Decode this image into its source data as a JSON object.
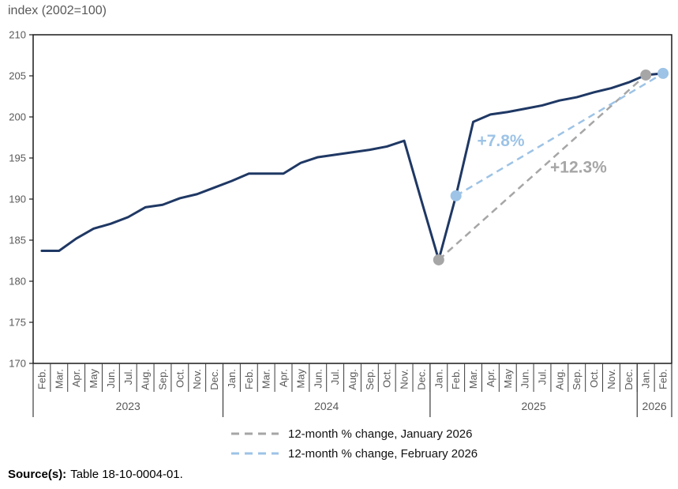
{
  "page": {
    "title": "index (2002=100)",
    "source_label": "Source(s):",
    "source_text": "Table 18-10-0004-01."
  },
  "legend": {
    "items": [
      {
        "label": "12-month % change, January 2026",
        "color": "#a6a6a6"
      },
      {
        "label": "12-month % change, February 2026",
        "color": "#9dc3e6"
      }
    ]
  },
  "chart_data": {
    "type": "line",
    "title": "index (2002=100)",
    "ylabel": "index (2002=100)",
    "ylim": [
      170,
      210
    ],
    "yticks": [
      170,
      175,
      180,
      185,
      190,
      195,
      200,
      205,
      210
    ],
    "grid": false,
    "categories": [
      "Feb.",
      "Mar.",
      "Apr.",
      "May",
      "Jun.",
      "Jul.",
      "Aug.",
      "Sep.",
      "Oct.",
      "Nov.",
      "Dec.",
      "Jan.",
      "Feb.",
      "Mar.",
      "Apr.",
      "May",
      "Jun.",
      "Jul.",
      "Aug.",
      "Sep.",
      "Oct.",
      "Nov.",
      "Dec.",
      "Jan.",
      "Feb.",
      "Mar.",
      "Apr.",
      "May",
      "Jun.",
      "Jul.",
      "Aug.",
      "Sep.",
      "Oct.",
      "Nov.",
      "Dec.",
      "Jan.",
      "Feb."
    ],
    "year_groups": [
      {
        "label": "2023",
        "months": 11
      },
      {
        "label": "2024",
        "months": 12
      },
      {
        "label": "2025",
        "months": 12
      },
      {
        "label": "2026",
        "months": 2
      }
    ],
    "series": [
      {
        "name": "index (2002=100)",
        "color": "#1f3864",
        "values": [
          183.7,
          183.7,
          185.2,
          186.4,
          187.0,
          187.8,
          189.0,
          189.3,
          190.1,
          190.6,
          191.4,
          192.2,
          193.1,
          193.1,
          193.1,
          194.4,
          195.1,
          195.4,
          195.7,
          196.0,
          196.4,
          197.1,
          189.8,
          182.6,
          190.4,
          199.4,
          200.3,
          200.6,
          201.0,
          201.4,
          202.0,
          202.4,
          203.0,
          203.5,
          204.2,
          205.1,
          205.3
        ]
      }
    ],
    "overlays": [
      {
        "name": "12-month % change, January 2026",
        "annotation": "+12.3%",
        "color": "#a6a6a6",
        "from_index": 23,
        "from_value": 182.6,
        "to_index": 35,
        "to_value": 205.1,
        "label_index": 31.1,
        "label_value": 193.9
      },
      {
        "name": "12-month % change, February 2026",
        "annotation": "+7.8%",
        "color": "#9dc3e6",
        "from_index": 24,
        "from_value": 190.4,
        "to_index": 36,
        "to_value": 205.3,
        "label_index": 26.6,
        "label_value": 197.1
      }
    ],
    "legend_position": "bottom",
    "axis_color": "#1a1a1a",
    "tick_label_color": "#595959"
  }
}
